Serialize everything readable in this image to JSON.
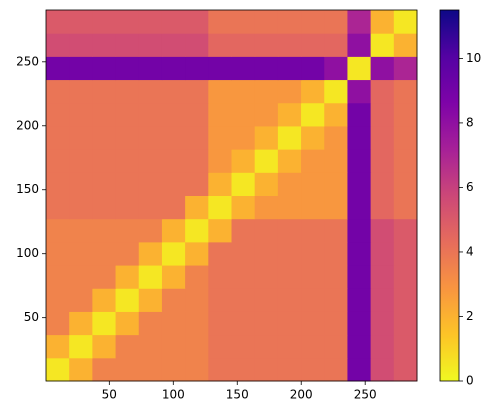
{
  "chart_data": {
    "type": "heatmap",
    "xlim": [
      0.5,
      290.5
    ],
    "ylim": [
      0.5,
      290.5
    ],
    "xticks": [
      50,
      100,
      150,
      200,
      250
    ],
    "yticks": [
      50,
      100,
      150,
      200,
      250
    ],
    "colormap": "plasma",
    "reverse_colormap": true,
    "clim": [
      0,
      11.5
    ],
    "cticks": [
      0,
      2,
      4,
      6,
      8,
      10
    ],
    "z": [
      [
        0.5,
        2,
        3.5,
        3.5,
        3.5,
        3.5,
        3.5,
        4,
        4,
        4,
        4,
        4,
        4,
        9,
        5.5,
        5
      ],
      [
        2,
        0.5,
        2,
        3.5,
        3.5,
        3.5,
        3.5,
        4,
        4,
        4,
        4,
        4,
        4,
        9,
        5.5,
        5
      ],
      [
        3.5,
        2,
        0.5,
        2,
        3.5,
        3.5,
        3.5,
        4,
        4,
        4,
        4,
        4,
        4,
        9,
        5.5,
        5
      ],
      [
        3.5,
        3.5,
        2,
        0.5,
        2,
        3.5,
        3.5,
        4,
        4,
        4,
        4,
        4,
        4,
        9,
        5.5,
        5
      ],
      [
        3.5,
        3.5,
        3.5,
        2,
        0.5,
        2,
        3.5,
        4,
        4,
        4,
        4,
        4,
        4,
        9,
        5.5,
        5
      ],
      [
        3.5,
        3.5,
        3.5,
        3.5,
        2,
        0.5,
        2,
        4,
        4,
        4,
        4,
        4,
        4,
        9,
        5.5,
        5
      ],
      [
        3.5,
        3.5,
        3.5,
        3.5,
        3.5,
        2,
        0.5,
        2,
        4,
        4,
        4,
        4,
        4,
        9,
        5.5,
        5
      ],
      [
        4,
        4,
        4,
        4,
        4,
        4,
        2,
        0.5,
        2,
        2.8,
        2.8,
        2.8,
        2.8,
        9,
        4.5,
        4
      ],
      [
        4,
        4,
        4,
        4,
        4,
        4,
        4,
        2,
        0.5,
        2,
        2.8,
        2.8,
        2.8,
        9,
        4.5,
        4
      ],
      [
        4,
        4,
        4,
        4,
        4,
        4,
        4,
        2.8,
        2,
        0.5,
        2,
        2.8,
        2.8,
        9,
        4.5,
        4
      ],
      [
        4,
        4,
        4,
        4,
        4,
        4,
        4,
        2.8,
        2.8,
        2,
        0.5,
        2,
        2.8,
        9,
        4.5,
        4
      ],
      [
        4,
        4,
        4,
        4,
        4,
        4,
        4,
        2.8,
        2.8,
        2.8,
        2,
        0.5,
        2,
        9,
        4.5,
        4
      ],
      [
        4,
        4,
        4,
        4,
        4,
        4,
        4,
        2.8,
        2.8,
        2.8,
        2.8,
        2,
        0.5,
        8,
        4.5,
        4
      ],
      [
        9,
        9,
        9,
        9,
        9,
        9,
        9,
        9,
        9,
        9,
        9,
        9,
        8,
        0.5,
        8,
        7
      ],
      [
        5.5,
        5.5,
        5.5,
        5.5,
        5.5,
        5.5,
        5.5,
        4.5,
        4.5,
        4.5,
        4.5,
        4.5,
        4.5,
        8,
        0.5,
        2
      ],
      [
        5,
        5,
        5,
        5,
        5,
        5,
        5,
        4,
        4,
        4,
        4,
        4,
        4,
        7,
        2,
        0.5
      ]
    ]
  }
}
